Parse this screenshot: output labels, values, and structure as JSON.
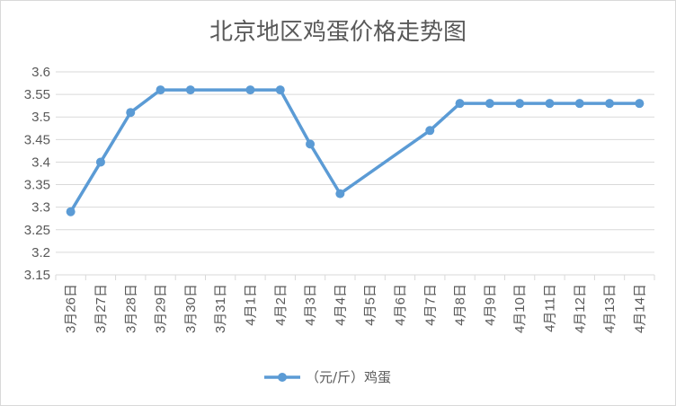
{
  "chart_data": {
    "type": "line",
    "title": "北京地区鸡蛋价格走势图",
    "categories": [
      "3月26日",
      "3月27日",
      "3月28日",
      "3月29日",
      "3月30日",
      "3月31日",
      "4月1日",
      "4月2日",
      "4月3日",
      "4月4日",
      "4月5日",
      "4月6日",
      "4月7日",
      "4月8日",
      "4月9日",
      "4月10日",
      "4月11日",
      "4月12日",
      "4月13日",
      "4月14日"
    ],
    "series": [
      {
        "name": "（元/斤）鸡蛋",
        "values": [
          3.29,
          3.4,
          3.51,
          3.56,
          3.56,
          null,
          3.56,
          3.56,
          3.44,
          3.33,
          null,
          null,
          3.47,
          3.53,
          3.53,
          3.53,
          3.53,
          3.53,
          3.53,
          3.53
        ],
        "color": "#5b9bd5"
      }
    ],
    "ylim": [
      3.15,
      3.6
    ],
    "yticks": [
      "3.15",
      "3.2",
      "3.25",
      "3.3",
      "3.35",
      "3.4",
      "3.45",
      "3.5",
      "3.55",
      "3.6"
    ],
    "grid": true,
    "legend": "bottom"
  }
}
